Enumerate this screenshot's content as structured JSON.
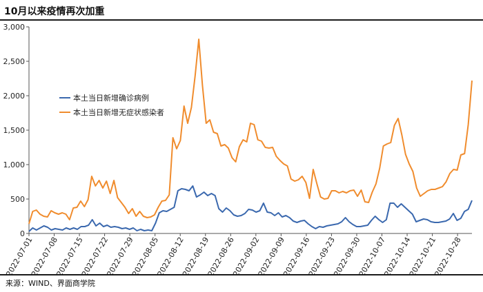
{
  "title": "10月以来疫情再次加重",
  "source": "来源：WIND、界面商学院",
  "colors": {
    "local_confirmed": "#3A68AE",
    "local_asymptomatic": "#F08C2D",
    "axis": "#555555"
  },
  "chart_data": {
    "type": "line",
    "title": "10月以来疫情再次加重",
    "xlabel": "",
    "ylabel": "",
    "ylim": [
      0,
      3000
    ],
    "yticks": [
      0,
      500,
      1000,
      1500,
      2000,
      2500,
      3000
    ],
    "ytick_labels": [
      "0",
      "500",
      "1,000",
      "1,500",
      "2,000",
      "2,500",
      "3,000"
    ],
    "grid": false,
    "legend_position": "upper-left",
    "x_start": "2022-07-01",
    "x_end": "2022-11-01",
    "xticks": [
      "2022-07-01",
      "2022-07-08",
      "2022-07-15",
      "2022-07-22",
      "2022-07-29",
      "2022-08-05",
      "2022-08-12",
      "2022-08-19",
      "2022-08-26",
      "2022-09-02",
      "2022-09-09",
      "2022-09-16",
      "2022-09-23",
      "2022-09-30",
      "2022-10-07",
      "2022-10-14",
      "2022-10-21",
      "2022-10-28"
    ],
    "series": [
      {
        "name": "本土当日新增确诊病例",
        "color": "#3A68AE",
        "values": [
          30,
          80,
          50,
          80,
          110,
          90,
          50,
          70,
          60,
          50,
          80,
          60,
          80,
          60,
          100,
          100,
          120,
          200,
          110,
          150,
          100,
          120,
          90,
          100,
          90,
          70,
          80,
          60,
          80,
          40,
          60,
          40,
          50,
          40,
          150,
          300,
          330,
          320,
          350,
          380,
          620,
          650,
          640,
          620,
          690,
          530,
          560,
          600,
          550,
          580,
          550,
          360,
          310,
          370,
          330,
          270,
          250,
          260,
          290,
          350,
          340,
          310,
          330,
          440,
          310,
          300,
          260,
          300,
          240,
          260,
          230,
          180,
          160,
          180,
          190,
          140,
          100,
          70,
          100,
          90,
          110,
          120,
          130,
          140,
          170,
          230,
          170,
          130,
          100,
          100,
          110,
          120,
          190,
          250,
          200,
          160,
          200,
          440,
          440,
          380,
          430,
          380,
          330,
          280,
          170,
          190,
          210,
          200,
          170,
          160,
          160,
          170,
          180,
          210,
          290,
          190,
          220,
          320,
          350,
          480
        ]
      },
      {
        "name": "本土当日新增无症状感染者",
        "color": "#F08C2D",
        "values": [
          140,
          320,
          340,
          280,
          250,
          240,
          330,
          300,
          280,
          300,
          280,
          200,
          370,
          380,
          470,
          390,
          490,
          830,
          690,
          770,
          660,
          760,
          580,
          770,
          520,
          450,
          380,
          290,
          360,
          250,
          320,
          250,
          230,
          240,
          270,
          380,
          470,
          480,
          560,
          1390,
          1230,
          1350,
          1850,
          1600,
          1830,
          2290,
          2820,
          2150,
          1600,
          1650,
          1470,
          1450,
          1270,
          1290,
          1240,
          1100,
          1040,
          1260,
          1360,
          1330,
          1600,
          1580,
          1360,
          1340,
          1250,
          1240,
          1250,
          1120,
          1060,
          1010,
          980,
          790,
          760,
          780,
          830,
          740,
          510,
          930,
          720,
          530,
          500,
          510,
          620,
          620,
          590,
          610,
          590,
          620,
          630,
          540,
          630,
          460,
          450,
          600,
          720,
          950,
          1270,
          1300,
          1320,
          1570,
          1670,
          1430,
          1150,
          1010,
          900,
          660,
          540,
          580,
          620,
          640,
          640,
          660,
          680,
          750,
          870,
          930,
          920,
          1140,
          1160,
          1580,
          2220
        ]
      }
    ]
  }
}
